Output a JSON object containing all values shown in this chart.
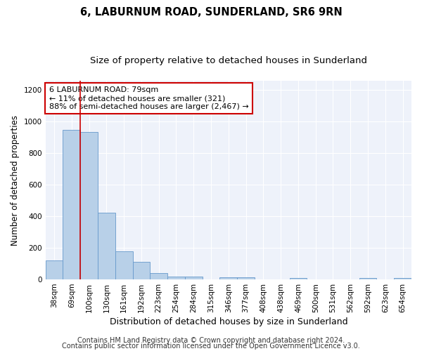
{
  "title": "6, LABURNUM ROAD, SUNDERLAND, SR6 9RN",
  "subtitle": "Size of property relative to detached houses in Sunderland",
  "xlabel": "Distribution of detached houses by size in Sunderland",
  "ylabel": "Number of detached properties",
  "categories": [
    "38sqm",
    "69sqm",
    "100sqm",
    "130sqm",
    "161sqm",
    "192sqm",
    "223sqm",
    "254sqm",
    "284sqm",
    "315sqm",
    "346sqm",
    "377sqm",
    "408sqm",
    "438sqm",
    "469sqm",
    "500sqm",
    "531sqm",
    "562sqm",
    "592sqm",
    "623sqm",
    "654sqm"
  ],
  "values": [
    120,
    950,
    935,
    425,
    180,
    112,
    42,
    20,
    20,
    0,
    15,
    15,
    0,
    0,
    8,
    0,
    0,
    0,
    8,
    0,
    8
  ],
  "bar_color": "#b8d0e8",
  "bar_edgecolor": "#6699cc",
  "vline_x_idx": 1.5,
  "vline_color": "#cc0000",
  "annotation_text": "6 LABURNUM ROAD: 79sqm\n← 11% of detached houses are smaller (321)\n88% of semi-detached houses are larger (2,467) →",
  "annotation_box_color": "#cc0000",
  "annotation_facecolor": "white",
  "ylim": [
    0,
    1260
  ],
  "yticks": [
    0,
    200,
    400,
    600,
    800,
    1000,
    1200
  ],
  "footer1": "Contains HM Land Registry data © Crown copyright and database right 2024.",
  "footer2": "Contains public sector information licensed under the Open Government Licence v3.0.",
  "plot_background": "#eef2fa",
  "title_fontsize": 10.5,
  "subtitle_fontsize": 9.5,
  "axis_label_fontsize": 8.5,
  "tick_fontsize": 7.5,
  "footer_fontsize": 7
}
